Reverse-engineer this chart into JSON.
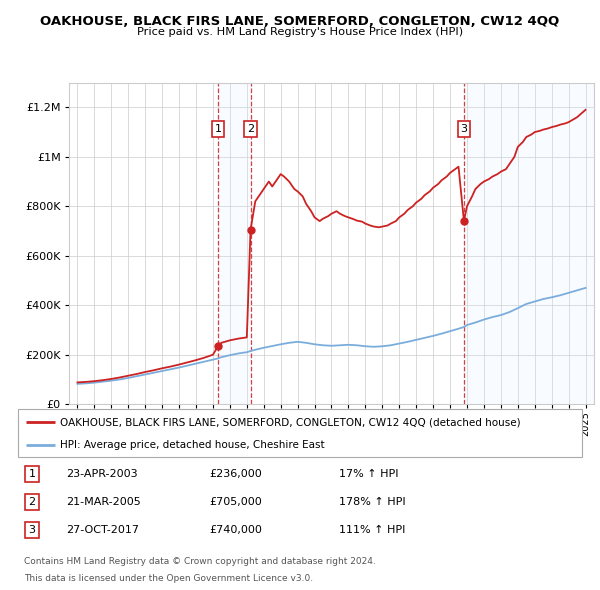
{
  "title": "OAKHOUSE, BLACK FIRS LANE, SOMERFORD, CONGLETON, CW12 4QQ",
  "subtitle": "Price paid vs. HM Land Registry's House Price Index (HPI)",
  "legend_line1": "OAKHOUSE, BLACK FIRS LANE, SOMERFORD, CONGLETON, CW12 4QQ (detached house)",
  "legend_line2": "HPI: Average price, detached house, Cheshire East",
  "footer1": "Contains HM Land Registry data © Crown copyright and database right 2024.",
  "footer2": "This data is licensed under the Open Government Licence v3.0.",
  "transactions": [
    {
      "num": 1,
      "date": "23-APR-2003",
      "price": 236000,
      "change": "17% ↑ HPI",
      "x": 2003.31
    },
    {
      "num": 2,
      "date": "21-MAR-2005",
      "price": 705000,
      "change": "178% ↑ HPI",
      "x": 2005.22
    },
    {
      "num": 3,
      "date": "27-OCT-2017",
      "price": 740000,
      "change": "111% ↑ HPI",
      "x": 2017.82
    }
  ],
  "hpi_x": [
    1995.0,
    1995.5,
    1996.0,
    1996.5,
    1997.0,
    1997.5,
    1998.0,
    1998.5,
    1999.0,
    1999.5,
    2000.0,
    2000.5,
    2001.0,
    2001.5,
    2002.0,
    2002.5,
    2003.0,
    2003.31,
    2003.5,
    2004.0,
    2004.5,
    2005.0,
    2005.22,
    2005.5,
    2006.0,
    2006.5,
    2007.0,
    2007.5,
    2008.0,
    2008.5,
    2009.0,
    2009.5,
    2010.0,
    2010.5,
    2011.0,
    2011.5,
    2012.0,
    2012.5,
    2013.0,
    2013.5,
    2014.0,
    2014.5,
    2015.0,
    2015.5,
    2016.0,
    2016.5,
    2017.0,
    2017.5,
    2017.82,
    2018.0,
    2018.5,
    2019.0,
    2019.5,
    2020.0,
    2020.5,
    2021.0,
    2021.5,
    2022.0,
    2022.5,
    2023.0,
    2023.5,
    2024.0,
    2024.5,
    2025.0
  ],
  "hpi_y": [
    82000,
    84000,
    87000,
    91000,
    95000,
    100000,
    106000,
    113000,
    120000,
    127000,
    134000,
    141000,
    148000,
    156000,
    164000,
    172000,
    180000,
    185000,
    190000,
    198000,
    205000,
    210000,
    215000,
    220000,
    228000,
    235000,
    242000,
    248000,
    252000,
    248000,
    242000,
    238000,
    236000,
    238000,
    240000,
    238000,
    234000,
    232000,
    234000,
    238000,
    245000,
    252000,
    260000,
    268000,
    276000,
    285000,
    295000,
    305000,
    312000,
    320000,
    330000,
    342000,
    352000,
    360000,
    372000,
    388000,
    405000,
    415000,
    425000,
    432000,
    440000,
    450000,
    460000,
    470000
  ],
  "price_x": [
    1995.0,
    1995.5,
    1996.0,
    1996.5,
    1997.0,
    1997.5,
    1998.0,
    1998.5,
    1999.0,
    1999.5,
    2000.0,
    2000.5,
    2001.0,
    2001.5,
    2002.0,
    2002.5,
    2003.0,
    2003.31,
    2003.31,
    2003.5,
    2004.0,
    2004.5,
    2005.0,
    2005.22,
    2005.22,
    2005.5,
    2006.0,
    2006.3,
    2006.5,
    2006.8,
    2007.0,
    2007.2,
    2007.5,
    2007.8,
    2008.0,
    2008.3,
    2008.5,
    2008.8,
    2009.0,
    2009.3,
    2009.5,
    2009.8,
    2010.0,
    2010.3,
    2010.5,
    2010.8,
    2011.0,
    2011.3,
    2011.5,
    2011.8,
    2012.0,
    2012.3,
    2012.5,
    2012.8,
    2013.0,
    2013.3,
    2013.5,
    2013.8,
    2014.0,
    2014.3,
    2014.5,
    2014.8,
    2015.0,
    2015.3,
    2015.5,
    2015.8,
    2016.0,
    2016.3,
    2016.5,
    2016.8,
    2017.0,
    2017.3,
    2017.5,
    2017.82,
    2017.82,
    2018.0,
    2018.3,
    2018.5,
    2018.8,
    2019.0,
    2019.3,
    2019.5,
    2019.8,
    2020.0,
    2020.3,
    2020.5,
    2020.8,
    2021.0,
    2021.3,
    2021.5,
    2021.8,
    2022.0,
    2022.3,
    2022.5,
    2022.8,
    2023.0,
    2023.3,
    2023.5,
    2023.8,
    2024.0,
    2024.5,
    2025.0
  ],
  "price_y": [
    88000,
    90000,
    93000,
    97000,
    102000,
    108000,
    115000,
    122000,
    130000,
    137000,
    145000,
    152000,
    160000,
    169000,
    178000,
    188000,
    200000,
    236000,
    236000,
    248000,
    258000,
    265000,
    270000,
    705000,
    705000,
    820000,
    870000,
    900000,
    880000,
    910000,
    930000,
    920000,
    900000,
    870000,
    860000,
    840000,
    810000,
    780000,
    755000,
    740000,
    750000,
    760000,
    770000,
    780000,
    770000,
    760000,
    755000,
    748000,
    742000,
    738000,
    730000,
    722000,
    718000,
    715000,
    718000,
    722000,
    730000,
    740000,
    755000,
    770000,
    785000,
    800000,
    815000,
    830000,
    845000,
    860000,
    875000,
    890000,
    905000,
    920000,
    935000,
    950000,
    960000,
    740000,
    740000,
    800000,
    840000,
    870000,
    890000,
    900000,
    910000,
    920000,
    930000,
    940000,
    950000,
    970000,
    1000000,
    1040000,
    1060000,
    1080000,
    1090000,
    1100000,
    1105000,
    1110000,
    1115000,
    1120000,
    1125000,
    1130000,
    1135000,
    1140000,
    1160000,
    1190000
  ],
  "ylim": [
    0,
    1300000
  ],
  "xlim": [
    1994.5,
    2025.5
  ],
  "background_color": "#ffffff",
  "hpi_color": "#7aaddb",
  "price_color": "#cc2222",
  "vline_color": "#cc2222",
  "shading_color": "#ddeeff",
  "grid_color": "#cccccc"
}
